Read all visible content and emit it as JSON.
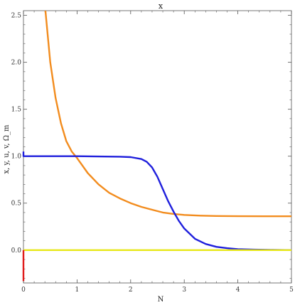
{
  "chart_data": {
    "type": "line",
    "title": "x",
    "xlabel": "N",
    "ylabel": "x, y, u, v, Ω_m",
    "xlim": [
      0,
      5
    ],
    "ylim": [
      -0.35,
      2.55
    ],
    "xticks": [
      "0",
      "1",
      "2",
      "3",
      "4",
      "5"
    ],
    "yticks": [
      "0.0",
      "0.5",
      "1.0",
      "1.5",
      "2.0",
      "2.5"
    ],
    "grid": false,
    "legend": "none",
    "series": [
      {
        "color": "#f28c1e",
        "x": [
          0.41,
          0.5,
          0.6,
          0.7,
          0.8,
          0.9,
          1.0,
          1.2,
          1.4,
          1.6,
          1.8,
          2.0,
          2.2,
          2.4,
          2.6,
          2.8,
          3.0,
          3.3,
          3.6,
          4.0,
          4.5,
          5.0
        ],
        "y": [
          2.55,
          2.0,
          1.62,
          1.35,
          1.16,
          1.05,
          0.98,
          0.82,
          0.7,
          0.61,
          0.55,
          0.5,
          0.46,
          0.43,
          0.4,
          0.385,
          0.375,
          0.367,
          0.363,
          0.361,
          0.36,
          0.36
        ]
      },
      {
        "color": "#1f1fdc",
        "x": [
          0.0,
          0.0,
          0.02,
          0.05,
          1.0,
          1.8,
          2.0,
          2.2,
          2.3,
          2.4,
          2.5,
          2.6,
          2.7,
          2.8,
          2.9,
          3.0,
          3.2,
          3.4,
          3.6,
          3.8,
          4.0,
          4.3,
          4.6,
          5.0
        ],
        "y": [
          1.05,
          1.0,
          1.0,
          1.0,
          1.0,
          0.995,
          0.99,
          0.97,
          0.94,
          0.88,
          0.78,
          0.65,
          0.52,
          0.41,
          0.31,
          0.23,
          0.12,
          0.065,
          0.035,
          0.02,
          0.01,
          0.005,
          0.002,
          0.0
        ]
      },
      {
        "color": "#e8e81a",
        "x": [
          0.0,
          5.0
        ],
        "y": [
          0.0,
          0.0
        ]
      },
      {
        "color": "#e01b1b",
        "x": [
          0.0,
          0.0
        ],
        "y": [
          -0.33,
          0.0
        ]
      }
    ]
  }
}
